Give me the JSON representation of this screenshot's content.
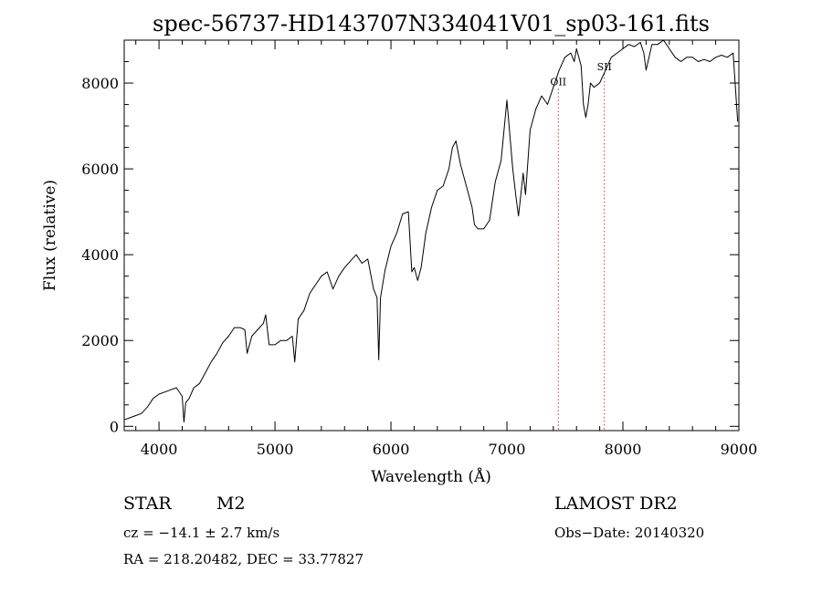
{
  "chart_data": {
    "type": "line",
    "title": "spec-56737-HD143707N334041V01_sp03-161.fits",
    "xlabel": "Wavelength (Å)",
    "ylabel": "Flux (relative)",
    "xlim": [
      3700,
      9000
    ],
    "ylim": [
      -100,
      9000
    ],
    "xticks": [
      4000,
      5000,
      6000,
      7000,
      8000,
      9000
    ],
    "yticks": [
      0,
      2000,
      4000,
      6000,
      8000
    ],
    "grid": false,
    "series": [
      {
        "color": "#000000",
        "x": [
          3700,
          3750,
          3800,
          3850,
          3900,
          3950,
          4000,
          4050,
          4100,
          4150,
          4200,
          4215,
          4230,
          4260,
          4300,
          4350,
          4400,
          4450,
          4500,
          4550,
          4600,
          4650,
          4700,
          4740,
          4760,
          4800,
          4850,
          4900,
          4920,
          4950,
          5000,
          5050,
          5100,
          5150,
          5170,
          5200,
          5250,
          5300,
          5350,
          5400,
          5450,
          5500,
          5550,
          5600,
          5650,
          5700,
          5750,
          5800,
          5850,
          5880,
          5895,
          5910,
          5950,
          6000,
          6050,
          6100,
          6150,
          6180,
          6200,
          6230,
          6260,
          6300,
          6350,
          6400,
          6450,
          6500,
          6530,
          6560,
          6600,
          6650,
          6700,
          6720,
          6750,
          6800,
          6850,
          6900,
          6950,
          7000,
          7050,
          7080,
          7100,
          7140,
          7160,
          7200,
          7250,
          7300,
          7350,
          7400,
          7450,
          7500,
          7550,
          7580,
          7600,
          7640,
          7660,
          7680,
          7700,
          7720,
          7750,
          7800,
          7850,
          7900,
          7950,
          8000,
          8050,
          8100,
          8150,
          8180,
          8200,
          8250,
          8300,
          8350,
          8400,
          8450,
          8500,
          8550,
          8600,
          8650,
          8700,
          8750,
          8800,
          8850,
          8900,
          8950,
          8990
        ],
        "y": [
          150,
          200,
          250,
          300,
          450,
          650,
          750,
          800,
          850,
          900,
          700,
          100,
          550,
          650,
          900,
          1000,
          1250,
          1500,
          1700,
          1950,
          2100,
          2300,
          2300,
          2250,
          1700,
          2100,
          2250,
          2400,
          2600,
          1900,
          1900,
          2000,
          2000,
          2100,
          1500,
          2500,
          2700,
          3100,
          3300,
          3500,
          3600,
          3200,
          3500,
          3700,
          3850,
          4000,
          3800,
          3900,
          3200,
          3000,
          1550,
          3000,
          3650,
          4200,
          4500,
          4950,
          5000,
          3600,
          3700,
          3400,
          3700,
          4500,
          5100,
          5500,
          5600,
          6000,
          6500,
          6650,
          6100,
          5600,
          5100,
          4700,
          4600,
          4600,
          4800,
          5700,
          6200,
          7600,
          6000,
          5300,
          4900,
          5900,
          5400,
          6900,
          7400,
          7700,
          7500,
          7900,
          8300,
          8600,
          8700,
          8500,
          8800,
          8400,
          7500,
          7200,
          7500,
          8000,
          7900,
          8000,
          8300,
          8600,
          8700,
          8800,
          8900,
          8850,
          8950,
          8700,
          8300,
          8900,
          8900,
          9000,
          8800,
          8600,
          8500,
          8600,
          8600,
          8500,
          8550,
          8500,
          8600,
          8650,
          8600,
          8700,
          7100
        ]
      }
    ],
    "annotations": [
      {
        "label": "OII",
        "wavelength": 7443
      },
      {
        "label": "SII",
        "wavelength": 7840
      }
    ]
  },
  "info": {
    "object_class": "STAR",
    "subclass": "M2",
    "survey": "LAMOST DR2",
    "cz": "cz = −14.1 ± 2.7 km/s",
    "obs_date": "Obs−Date: 20140320",
    "coords": "RA = 218.20482, DEC =  33.77827"
  }
}
